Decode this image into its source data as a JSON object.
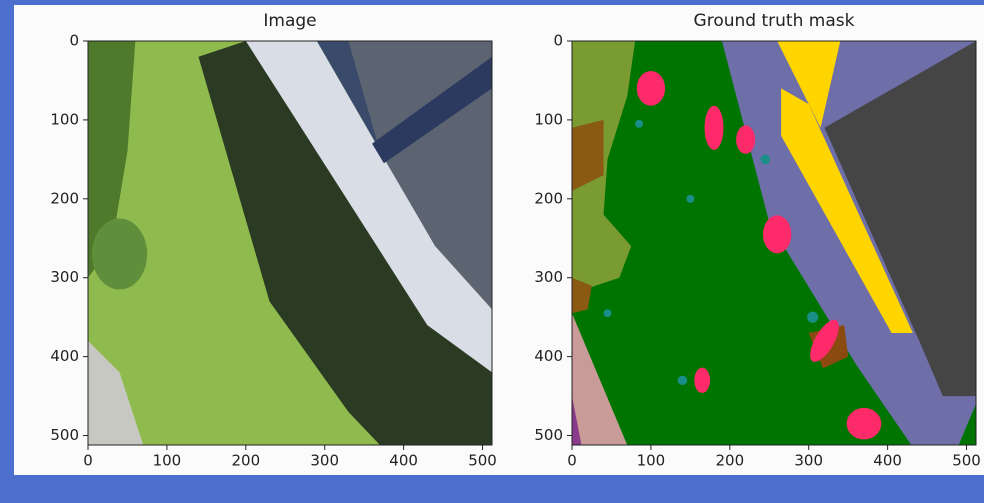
{
  "chart_data": [
    {
      "type": "image",
      "title": "Image",
      "xlim": [
        0,
        512
      ],
      "ylim": [
        512,
        0
      ],
      "xticks": [
        0,
        100,
        200,
        300,
        400,
        500
      ],
      "yticks": [
        0,
        100,
        200,
        300,
        400,
        500
      ]
    },
    {
      "type": "image",
      "title": "Ground truth mask",
      "xlim": [
        0,
        512
      ],
      "ylim": [
        512,
        0
      ],
      "xticks": [
        0,
        100,
        200,
        300,
        400,
        500
      ],
      "yticks": [
        0,
        100,
        200,
        300,
        400,
        500
      ]
    }
  ]
}
